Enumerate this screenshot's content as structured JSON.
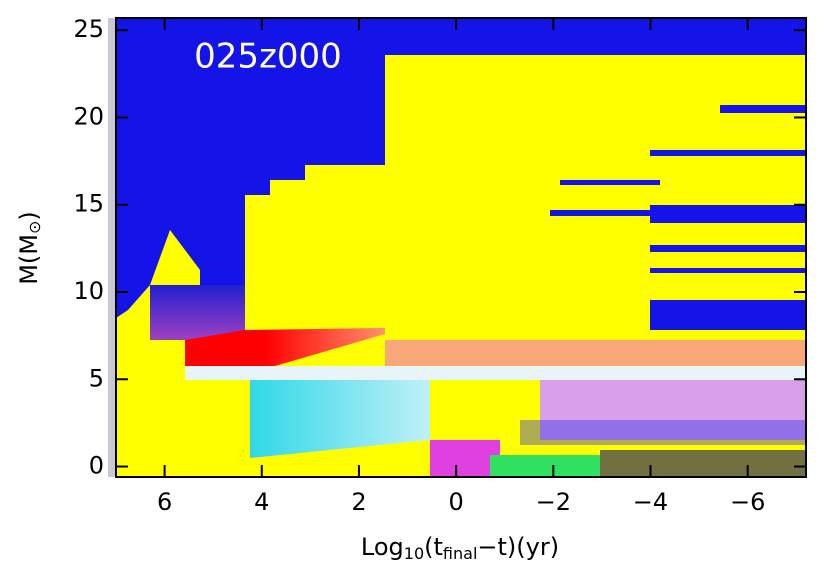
{
  "chart_data": {
    "type": "kippenhahn",
    "title": "025z000",
    "xlabel": [
      "Log",
      "10",
      "(t",
      "final",
      "−t)(yr)"
    ],
    "ylabel": [
      "M(M",
      "⊙",
      ")"
    ],
    "xlim": [
      7,
      -7.2
    ],
    "ylim": [
      -0.6,
      25.7
    ],
    "xticks": [
      6,
      4,
      2,
      0,
      {
        "value": -2,
        "label": "−2"
      },
      {
        "value": -4,
        "label": "−4"
      },
      {
        "value": -6,
        "label": "−6"
      }
    ],
    "yticks": [
      0,
      5,
      10,
      15,
      20,
      25
    ]
  }
}
